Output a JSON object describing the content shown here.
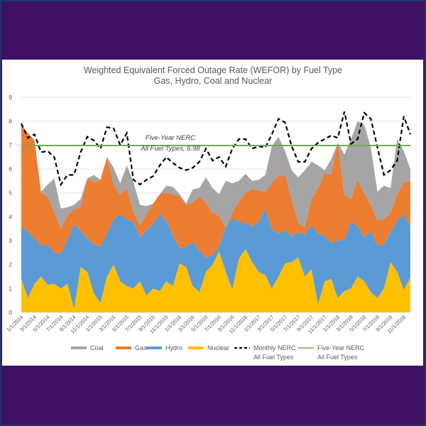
{
  "chart_data": {
    "type": "area",
    "stacked": true,
    "title": "Weighted Equivalent Forced Outage Rate (WEFOR) by Fuel Type",
    "subtitle": "Gas, Hydro, Coal and Nuclear",
    "xlabel": "",
    "ylabel": "",
    "ylim": [
      0,
      9
    ],
    "yticks": [
      "0",
      "1",
      "2",
      "3",
      "4",
      "5",
      "6",
      "7",
      "8",
      "9"
    ],
    "grid": true,
    "legend_position": "bottom",
    "x": [
      "1/1/2014",
      "2/1/2014",
      "3/1/2014",
      "4/1/2014",
      "5/1/2014",
      "6/1/2014",
      "7/1/2014",
      "8/1/2014",
      "9/1/2014",
      "10/1/2014",
      "11/1/2014",
      "12/1/2014",
      "1/1/2015",
      "2/1/2015",
      "3/1/2015",
      "4/1/2015",
      "5/1/2015",
      "6/1/2015",
      "7/1/2015",
      "8/1/2015",
      "9/1/2015",
      "10/1/2015",
      "11/1/2015",
      "12/1/2015",
      "1/1/2016",
      "2/1/2016",
      "3/1/2016",
      "4/1/2016",
      "5/1/2016",
      "6/1/2016",
      "7/1/2016",
      "8/1/2016",
      "9/1/2016",
      "10/1/2016",
      "11/1/2016",
      "12/1/2016",
      "1/1/2017",
      "2/1/2017",
      "3/1/2017",
      "4/1/2017",
      "5/1/2017",
      "6/1/2017",
      "7/1/2017",
      "8/1/2017",
      "9/1/2017",
      "10/1/2017",
      "11/1/2017",
      "12/1/2017",
      "1/1/2018",
      "2/1/2018",
      "3/1/2018",
      "4/1/2018",
      "5/1/2018",
      "6/1/2018",
      "7/1/2018",
      "8/1/2018",
      "9/1/2018",
      "10/1/2018",
      "11/1/2018",
      "12/1/2018"
    ],
    "xtick_labels": [
      "1/1/2014",
      "3/1/2014",
      "5/1/2014",
      "7/1/2014",
      "9/1/2014",
      "11/1/2014",
      "1/1/2015",
      "3/1/2015",
      "5/1/2015",
      "7/1/2015",
      "9/1/2015",
      "11/1/2015",
      "1/1/2016",
      "3/1/2016",
      "5/1/2016",
      "7/1/2016",
      "9/1/2016",
      "11/1/2016",
      "1/1/2017",
      "3/1/2017",
      "5/1/2017",
      "7/1/2017",
      "9/1/2017",
      "11/1/2017",
      "1/1/2018",
      "3/1/2018",
      "5/1/2018",
      "7/1/2018",
      "9/1/2018",
      "11/1/2018"
    ],
    "series": [
      {
        "name": "Nuclear",
        "color": "#ffc000",
        "values": [
          1.4,
          0.6,
          1.2,
          1.5,
          1.15,
          1.2,
          1.0,
          1.2,
          0.15,
          1.9,
          1.7,
          0.8,
          0.4,
          1.5,
          2.0,
          1.3,
          1.1,
          1.0,
          1.3,
          0.7,
          1.0,
          0.9,
          1.3,
          1.1,
          2.05,
          1.9,
          1.1,
          0.85,
          1.7,
          2.0,
          2.55,
          1.7,
          0.95,
          2.25,
          2.65,
          2.1,
          1.7,
          1.55,
          1.0,
          1.5,
          2.05,
          2.1,
          2.3,
          1.5,
          1.8,
          0.35,
          1.3,
          1.4,
          0.6,
          0.9,
          1.0,
          1.5,
          1.3,
          0.85,
          0.6,
          1.0,
          2.1,
          1.7,
          0.95,
          1.45
        ]
      },
      {
        "name": "Hydro",
        "color": "#5b9bd5",
        "values": [
          2.15,
          2.8,
          1.9,
          1.3,
          1.7,
          1.3,
          1.45,
          1.85,
          3.55,
          1.5,
          1.4,
          2.05,
          2.35,
          1.8,
          1.9,
          2.8,
          2.8,
          2.8,
          1.85,
          2.75,
          2.7,
          3.2,
          2.55,
          2.1,
          0.65,
          0.85,
          1.85,
          1.75,
          0.6,
          0.4,
          0.2,
          1.85,
          3.0,
          1.55,
          1.1,
          1.5,
          2.1,
          2.8,
          2.5,
          1.8,
          1.4,
          1.1,
          1.05,
          1.75,
          1.85,
          2.95,
          1.9,
          1.5,
          2.4,
          2.15,
          2.8,
          2.1,
          1.85,
          2.55,
          2.2,
          1.85,
          1.25,
          2.15,
          3.15,
          2.15
        ]
      },
      {
        "name": "Gas",
        "color": "#ed7d31",
        "values": [
          4.3,
          4.1,
          4.1,
          2.2,
          2.0,
          1.7,
          1.05,
          1.0,
          0.6,
          1.0,
          2.5,
          2.6,
          2.8,
          3.2,
          1.45,
          0.8,
          1.3,
          0.4,
          0.5,
          0.65,
          0.85,
          0.85,
          1.15,
          1.75,
          2.15,
          1.75,
          1.65,
          2.25,
          2.3,
          1.75,
          1.3,
          0.0,
          0.2,
          0.85,
          1.25,
          1.55,
          1.3,
          0.7,
          1.9,
          2.4,
          2.3,
          1.5,
          0.4,
          0.3,
          1.1,
          1.9,
          2.6,
          2.9,
          4.1,
          1.85,
          0.95,
          1.95,
          1.85,
          1.1,
          1.05,
          1.05,
          0.8,
          1.1,
          1.35,
          1.9
        ]
      },
      {
        "name": "Coal",
        "color": "#a5a5a5",
        "values": [
          0.0,
          0.0,
          0.0,
          0.05,
          0.5,
          1.4,
          0.85,
          0.35,
          0.2,
          0.35,
          0.0,
          0.3,
          0.0,
          0.0,
          0.7,
          0.5,
          0.95,
          1.25,
          0.85,
          0.35,
          0.0,
          0.0,
          0.3,
          0.3,
          0.1,
          0.05,
          0.55,
          0.35,
          1.05,
          1.05,
          0.9,
          1.95,
          1.25,
          0.85,
          0.8,
          0.35,
          0.45,
          0.7,
          1.55,
          1.65,
          1.0,
          1.25,
          1.9,
          2.4,
          1.55,
          0.95,
          0.15,
          0.6,
          0.0,
          1.7,
          2.5,
          2.45,
          2.85,
          2.4,
          1.2,
          1.4,
          1.05,
          2.3,
          1.3,
          0.5
        ]
      },
      {
        "name": "Monthly NERC All Fuel Types",
        "color": "#000000",
        "line_style": "dashed",
        "values": [
          7.9,
          7.3,
          7.45,
          6.7,
          6.75,
          6.5,
          5.35,
          5.75,
          5.75,
          6.7,
          7.35,
          7.2,
          6.85,
          7.75,
          7.7,
          7.0,
          7.5,
          5.55,
          5.35,
          5.55,
          5.7,
          6.15,
          6.5,
          6.25,
          6.05,
          5.95,
          6.05,
          6.3,
          6.85,
          6.35,
          6.5,
          6.1,
          6.85,
          7.25,
          7.25,
          6.85,
          6.95,
          6.9,
          7.45,
          8.1,
          7.95,
          6.95,
          6.3,
          6.3,
          6.85,
          7.1,
          7.25,
          7.4,
          7.3,
          8.4,
          7.05,
          7.25,
          8.35,
          8.1,
          6.9,
          5.75,
          5.95,
          6.35,
          8.2,
          7.45
        ]
      },
      {
        "name": "Five-Year NERC All Fuel Types",
        "color": "#70ad47",
        "line_style": "solid",
        "constant": 6.98
      }
    ],
    "legend": [
      {
        "key": "coal",
        "label": "Coal",
        "color": "#a5a5a5",
        "style": "swatch"
      },
      {
        "key": "gas",
        "label": "Gas",
        "color": "#ed7d31",
        "style": "swatch"
      },
      {
        "key": "hydro",
        "label": "Hydro",
        "color": "#5b9bd5",
        "style": "swatch"
      },
      {
        "key": "nuclear",
        "label": "Nuclear",
        "color": "#ffc000",
        "style": "swatch"
      },
      {
        "key": "monthly",
        "label": "Monthly NERC",
        "label2": "All Fuel Types",
        "color": "#000000",
        "style": "dashed"
      },
      {
        "key": "fiveyear",
        "label": "Five-Year NERC",
        "label2": "All Fuel Types",
        "color": "#70ad47",
        "style": "solid"
      }
    ],
    "annotations": [
      {
        "text_line1": "Five-Year NERC",
        "text_line2": "All Fuel Types, 6.98",
        "anchor_value": 6.98,
        "anchor_x": "2/1/2016"
      }
    ]
  },
  "colors": {
    "frame_background": "#3e1165",
    "frame_border": "#1c3a6e",
    "panel_background": "#ffffff",
    "gridline": "#e6e6e6"
  }
}
